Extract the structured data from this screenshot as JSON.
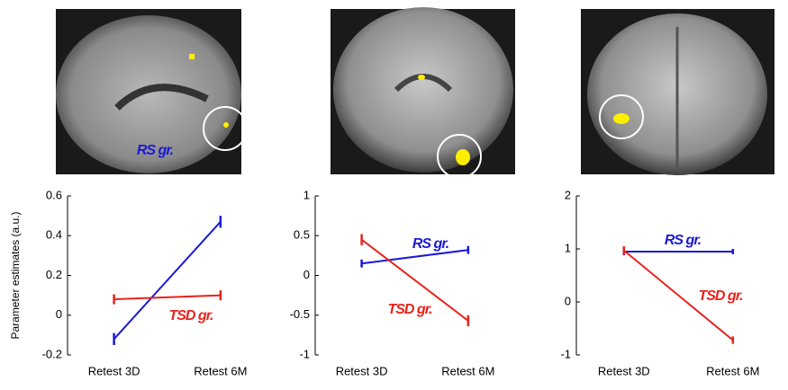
{
  "chart_data": [
    {
      "type": "line",
      "ylabel": "Parameter estimates (a.u.)",
      "categories": [
        "Retest 3D",
        "Retest 6M"
      ],
      "ylim": [
        -0.2,
        0.6
      ],
      "yticks": [
        -0.2,
        0,
        0.2,
        0.4,
        0.6
      ],
      "series": [
        {
          "name": "RS gr.",
          "color": "#1a1ad6",
          "values": [
            -0.12,
            0.47
          ],
          "errors": [
            0.03,
            0.03
          ]
        },
        {
          "name": "TSD gr.",
          "color": "#e8231c",
          "values": [
            0.08,
            0.1
          ],
          "errors": [
            0.025,
            0.025
          ]
        }
      ]
    },
    {
      "type": "line",
      "categories": [
        "Retest 3D",
        "Retest 6M"
      ],
      "ylim": [
        -1,
        1
      ],
      "yticks": [
        -1,
        -0.5,
        0,
        0.5,
        1
      ],
      "series": [
        {
          "name": "RS gr.",
          "color": "#1a1ad6",
          "values": [
            0.15,
            0.32
          ],
          "errors": [
            0.05,
            0.05
          ]
        },
        {
          "name": "TSD gr.",
          "color": "#e8231c",
          "values": [
            0.45,
            -0.57
          ],
          "errors": [
            0.07,
            0.07
          ]
        }
      ]
    },
    {
      "type": "line",
      "categories": [
        "Retest 3D",
        "Retest 6M"
      ],
      "ylim": [
        -1,
        2
      ],
      "yticks": [
        -1,
        0,
        1,
        2
      ],
      "series": [
        {
          "name": "RS gr.",
          "color": "#1a1ad6",
          "values": [
            0.95,
            0.95
          ],
          "errors": [
            0.07,
            0.05
          ]
        },
        {
          "name": "TSD gr.",
          "color": "#e8231c",
          "values": [
            0.97,
            -0.72
          ],
          "errors": [
            0.08,
            0.07
          ]
        }
      ]
    }
  ]
}
